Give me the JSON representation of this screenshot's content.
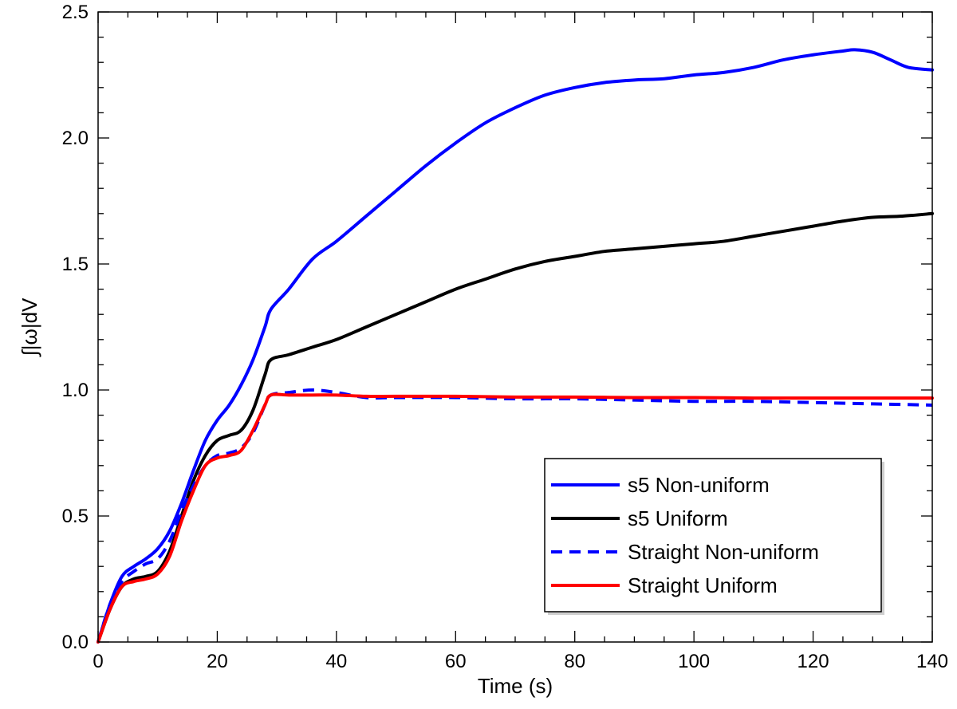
{
  "chart_data": {
    "type": "line",
    "title": "",
    "xlabel": "Time (s)",
    "ylabel": "∫|ω|dV",
    "xlim": [
      0,
      140
    ],
    "ylim": [
      0,
      2.5
    ],
    "x_ticks": [
      0,
      20,
      40,
      60,
      80,
      100,
      120,
      140
    ],
    "x_tick_labels": [
      "0",
      "20",
      "40",
      "60",
      "80",
      "100",
      "120",
      "140"
    ],
    "y_ticks": [
      0,
      0.5,
      1.0,
      1.5,
      2.0,
      2.5
    ],
    "y_tick_labels": [
      "0.0",
      "0.5",
      "1.0",
      "1.5",
      "2.0",
      "2.5"
    ],
    "legend_position": "bottom-right",
    "series": [
      {
        "name": "s5 Non-uniform",
        "color": "#0000ff",
        "dash": "solid",
        "x": [
          0,
          2,
          4,
          6,
          8,
          10,
          12,
          14,
          16,
          18,
          20,
          22,
          24,
          26,
          28,
          29,
          32,
          36,
          40,
          45,
          50,
          55,
          60,
          65,
          70,
          75,
          80,
          85,
          90,
          95,
          100,
          105,
          110,
          115,
          120,
          125,
          127,
          130,
          133,
          136,
          140
        ],
        "values": [
          0,
          0.15,
          0.26,
          0.3,
          0.33,
          0.37,
          0.44,
          0.55,
          0.68,
          0.8,
          0.88,
          0.94,
          1.02,
          1.12,
          1.25,
          1.32,
          1.4,
          1.52,
          1.59,
          1.69,
          1.79,
          1.89,
          1.98,
          2.06,
          2.12,
          2.17,
          2.2,
          2.22,
          2.23,
          2.235,
          2.25,
          2.26,
          2.28,
          2.31,
          2.33,
          2.345,
          2.35,
          2.34,
          2.31,
          2.28,
          2.27
        ]
      },
      {
        "name": "s5 Uniform",
        "color": "#000000",
        "dash": "solid",
        "x": [
          0,
          2,
          4,
          6,
          8,
          10,
          12,
          14,
          16,
          18,
          20,
          22,
          24,
          26,
          28,
          29,
          32,
          36,
          40,
          45,
          50,
          55,
          60,
          65,
          70,
          75,
          80,
          85,
          90,
          95,
          100,
          105,
          110,
          115,
          120,
          125,
          130,
          135,
          140
        ],
        "values": [
          0,
          0.13,
          0.22,
          0.25,
          0.26,
          0.28,
          0.36,
          0.5,
          0.64,
          0.74,
          0.8,
          0.82,
          0.84,
          0.92,
          1.06,
          1.12,
          1.14,
          1.17,
          1.2,
          1.25,
          1.3,
          1.35,
          1.4,
          1.44,
          1.48,
          1.51,
          1.53,
          1.55,
          1.56,
          1.57,
          1.58,
          1.59,
          1.61,
          1.63,
          1.65,
          1.67,
          1.685,
          1.69,
          1.7
        ]
      },
      {
        "name": "Straight Non-uniform",
        "color": "#0000ff",
        "dash": "dashed",
        "x": [
          0,
          2,
          4,
          6,
          8,
          10,
          12,
          14,
          16,
          18,
          20,
          22,
          24,
          26,
          28,
          29,
          32,
          36,
          40,
          45,
          50,
          60,
          70,
          80,
          90,
          100,
          110,
          120,
          130,
          140
        ],
        "values": [
          0,
          0.15,
          0.24,
          0.28,
          0.31,
          0.33,
          0.4,
          0.52,
          0.62,
          0.7,
          0.74,
          0.75,
          0.77,
          0.83,
          0.94,
          0.98,
          0.99,
          1.0,
          0.99,
          0.97,
          0.97,
          0.97,
          0.965,
          0.965,
          0.96,
          0.955,
          0.955,
          0.95,
          0.945,
          0.94
        ]
      },
      {
        "name": "Straight Uniform",
        "color": "#ff0000",
        "dash": "solid",
        "x": [
          0,
          2,
          4,
          6,
          8,
          10,
          12,
          14,
          16,
          18,
          20,
          22,
          24,
          26,
          28,
          29,
          32,
          36,
          40,
          45,
          50,
          60,
          70,
          80,
          90,
          100,
          110,
          120,
          130,
          140
        ],
        "values": [
          0,
          0.13,
          0.22,
          0.24,
          0.25,
          0.27,
          0.34,
          0.48,
          0.6,
          0.7,
          0.73,
          0.74,
          0.76,
          0.84,
          0.94,
          0.98,
          0.98,
          0.98,
          0.98,
          0.975,
          0.975,
          0.975,
          0.972,
          0.972,
          0.97,
          0.97,
          0.968,
          0.968,
          0.968,
          0.968
        ]
      }
    ]
  }
}
